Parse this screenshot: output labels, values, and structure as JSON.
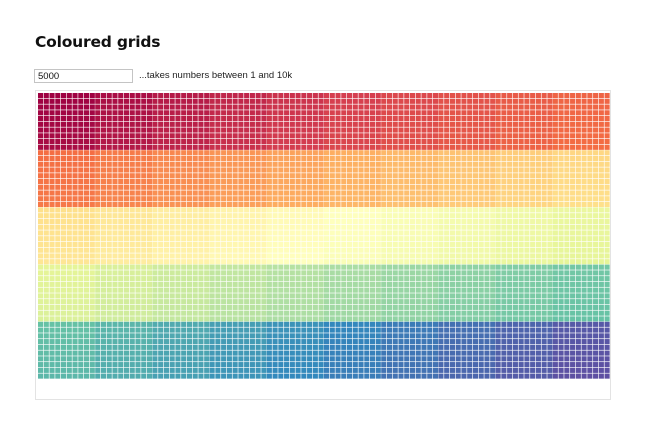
{
  "page": {
    "title": "Coloured grids",
    "hint": "...takes numbers between 1 and 10k"
  },
  "count_input": {
    "value": "5000"
  },
  "grid": {
    "total_cells": 5000,
    "blocks_per_row": 10,
    "cells_per_block_side": 10,
    "color_scale": "spectral",
    "palette": [
      "#9e0142",
      "#d53e4f",
      "#f46d43",
      "#fdae61",
      "#fee08b",
      "#ffffbf",
      "#e6f598",
      "#abdda4",
      "#66c2a5",
      "#3288bd",
      "#5e4fa2"
    ]
  }
}
